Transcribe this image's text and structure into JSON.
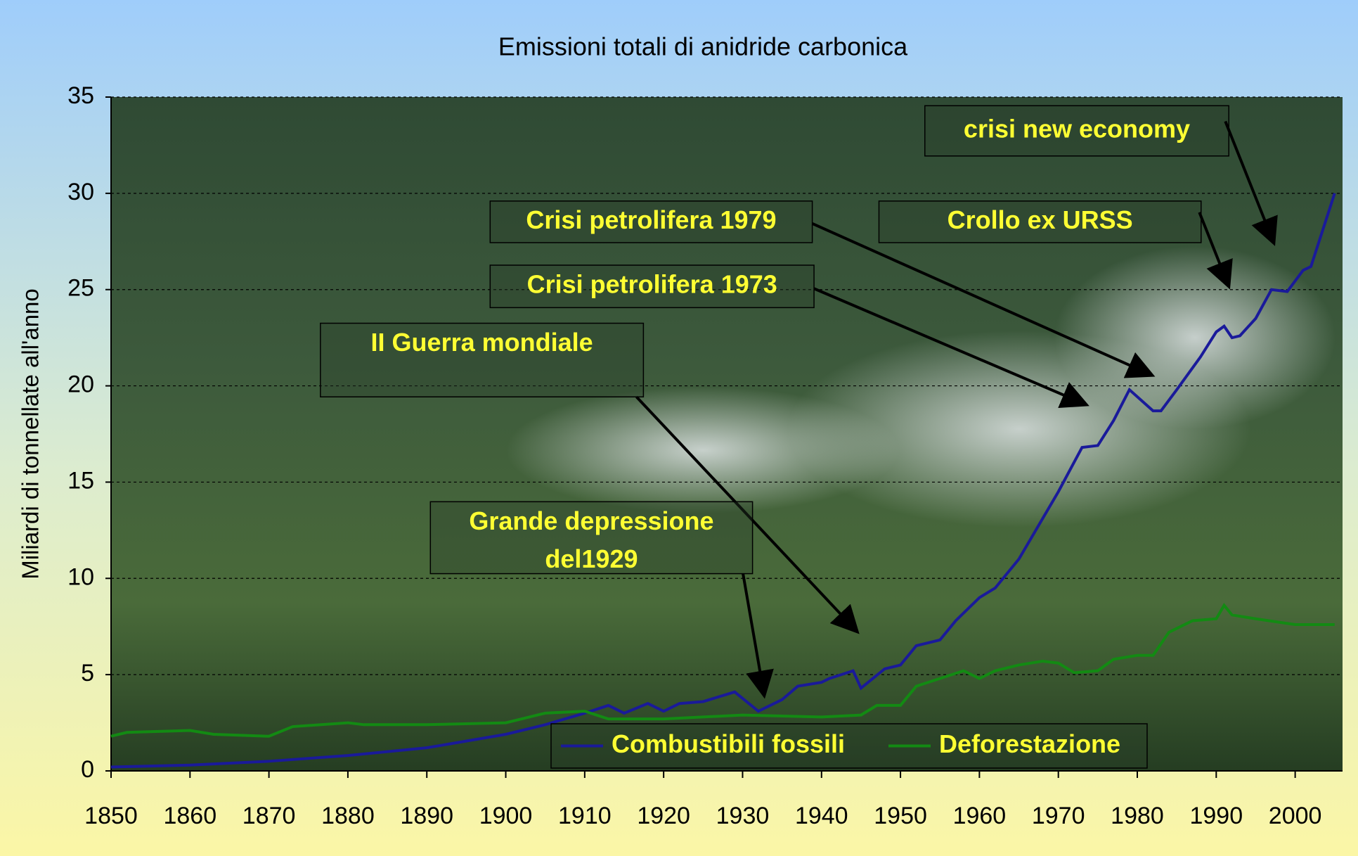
{
  "chart_data": {
    "type": "line",
    "title": "Emissioni totali di anidride carbonica",
    "ylabel": "Miliardi di tonnellate all'anno",
    "xlim": [
      1850,
      2006
    ],
    "xticks": [
      1850,
      1860,
      1870,
      1880,
      1890,
      1900,
      1910,
      1920,
      1930,
      1940,
      1950,
      1960,
      1970,
      1980,
      1990,
      2000
    ],
    "ylim": [
      0,
      35
    ],
    "yticks": [
      0,
      5,
      10,
      15,
      20,
      25,
      30,
      35
    ],
    "grid": true,
    "legend": "lower center",
    "series": [
      {
        "name": "Combustibili fossili",
        "color": "#1a1a9a",
        "x": [
          1850,
          1860,
          1870,
          1880,
          1890,
          1900,
          1905,
          1910,
          1913,
          1915,
          1918,
          1920,
          1922,
          1925,
          1929,
          1932,
          1935,
          1937,
          1940,
          1941,
          1944,
          1945,
          1948,
          1950,
          1952,
          1955,
          1957,
          1960,
          1962,
          1965,
          1970,
          1973,
          1975,
          1977,
          1979,
          1982,
          1983,
          1985,
          1988,
          1990,
          1991,
          1992,
          1993,
          1995,
          1997,
          1999,
          2001,
          2002,
          2005
        ],
        "values": [
          0.2,
          0.3,
          0.5,
          0.8,
          1.2,
          1.9,
          2.4,
          3.0,
          3.4,
          3.0,
          3.5,
          3.1,
          3.5,
          3.6,
          4.1,
          3.1,
          3.7,
          4.4,
          4.6,
          4.8,
          5.2,
          4.3,
          5.3,
          5.5,
          6.5,
          6.8,
          7.8,
          9.0,
          9.5,
          11.0,
          14.5,
          16.8,
          16.9,
          18.2,
          19.8,
          18.7,
          18.7,
          19.8,
          21.5,
          22.8,
          23.1,
          22.5,
          22.6,
          23.5,
          25.0,
          24.9,
          26.0,
          26.2,
          30.0
        ]
      },
      {
        "name": "Deforestazione",
        "color": "#138a13",
        "x": [
          1850,
          1852,
          1860,
          1863,
          1870,
          1873,
          1880,
          1882,
          1890,
          1900,
          1905,
          1910,
          1913,
          1920,
          1930,
          1940,
          1945,
          1947,
          1950,
          1952,
          1955,
          1958,
          1960,
          1962,
          1965,
          1968,
          1970,
          1972,
          1975,
          1977,
          1980,
          1982,
          1984,
          1987,
          1990,
          1991,
          1992,
          1995,
          2000,
          2005
        ],
        "values": [
          1.8,
          2.0,
          2.1,
          1.9,
          1.8,
          2.3,
          2.5,
          2.4,
          2.4,
          2.5,
          3.0,
          3.1,
          2.7,
          2.7,
          2.9,
          2.8,
          2.9,
          3.4,
          3.4,
          4.4,
          4.8,
          5.2,
          4.8,
          5.2,
          5.5,
          5.7,
          5.6,
          5.1,
          5.2,
          5.8,
          6.0,
          6.0,
          7.2,
          7.8,
          7.9,
          8.6,
          8.1,
          7.9,
          7.6,
          7.6
        ]
      }
    ],
    "annotations": [
      {
        "lines": [
          "crisi new economy"
        ]
      },
      {
        "lines": [
          "Crollo ex URSS"
        ]
      },
      {
        "lines": [
          "Crisi petrolifera 1979"
        ]
      },
      {
        "lines": [
          "Crisi petrolifera 1973"
        ]
      },
      {
        "lines": [
          "II Guerra mondiale"
        ]
      },
      {
        "lines": [
          "Grande depressione",
          "del1929"
        ]
      }
    ]
  }
}
